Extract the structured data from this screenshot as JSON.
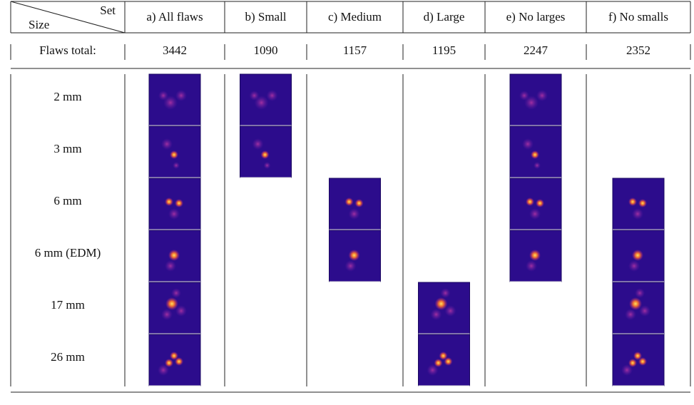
{
  "header": {
    "corner_top": "Set",
    "corner_bottom": "Size",
    "columns": [
      "a) All flaws",
      "b) Small",
      "c) Medium",
      "d) Large",
      "e) No larges",
      "f) No smalls"
    ]
  },
  "totals": {
    "label": "Flaws total:",
    "values": [
      "3442",
      "1090",
      "1157",
      "1195",
      "2247",
      "2352"
    ]
  },
  "rows": [
    "2 mm",
    "3 mm",
    "6 mm",
    "6 mm (EDM)",
    "17 mm",
    "26 mm"
  ]
}
